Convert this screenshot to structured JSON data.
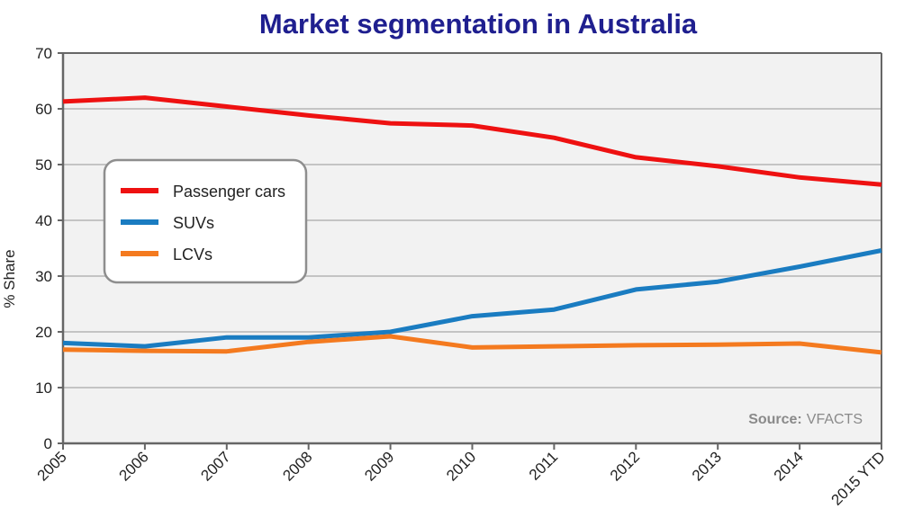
{
  "colors": {
    "title": "#1f1f8f",
    "plot_bg": "#f2f2f2",
    "grid": "#c4c4c4",
    "axis": "#666666"
  },
  "chart_data": {
    "type": "line",
    "title": "Market segmentation in Australia",
    "ylabel": "% Share",
    "xlabel": "",
    "ylim": [
      0,
      70
    ],
    "yticks": [
      0,
      10,
      20,
      30,
      40,
      50,
      60,
      70
    ],
    "grid": true,
    "legend_position": "left",
    "categories": [
      "2005",
      "2006",
      "2007",
      "2008",
      "2009",
      "2010",
      "2011",
      "2012",
      "2013",
      "2014",
      "2015 YTD"
    ],
    "series": [
      {
        "name": "Passenger cars",
        "color": "#ee1111",
        "values": [
          61.3,
          62.0,
          60.4,
          58.8,
          57.4,
          57.0,
          54.8,
          51.3,
          49.7,
          47.7,
          46.4
        ]
      },
      {
        "name": "SUVs",
        "color": "#1a7cc1",
        "values": [
          18.0,
          17.4,
          19.0,
          19.0,
          20.0,
          22.8,
          24.0,
          27.6,
          29.0,
          31.7,
          34.6
        ]
      },
      {
        "name": "LCVs",
        "color": "#f47a1f",
        "values": [
          16.8,
          16.6,
          16.5,
          18.2,
          19.2,
          17.2,
          17.4,
          17.6,
          17.7,
          17.9,
          16.3
        ]
      }
    ],
    "source_label": "Source:",
    "source_value": "VFACTS"
  }
}
